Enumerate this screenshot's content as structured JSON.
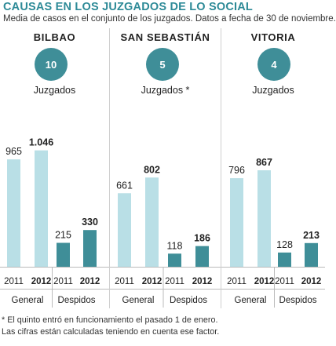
{
  "title": "CAUSAS EN LOS JUZGADOS DE LO SOCIAL",
  "subtitle": "Media de casos en el conjunto de los juzgados. Datos a fecha de 30 de noviembre.",
  "footnote": {
    "line1": "* El quinto entró en funcionamiento el pasado 1 de enero.",
    "line2": "Las cifras están calculadas teniendo en cuenta ese factor."
  },
  "colors": {
    "general_2011": "#b9dfe6",
    "general_2012": "#b9dfe6",
    "despidos_2011": "#3f8e98",
    "despidos_2012": "#3f8e98",
    "title": "#2d8a97",
    "badge": "#3f8e98"
  },
  "chart_data": [
    {
      "type": "bar",
      "panel": "BILBAO",
      "badge_value": "10",
      "badge_label": "Juzgados",
      "groups": [
        "General",
        "Despidos"
      ],
      "categories": [
        "2011",
        "2012",
        "2011",
        "2012"
      ],
      "value_labels": [
        "965",
        "1.046",
        "215",
        "330"
      ],
      "values": [
        965,
        1046,
        215,
        330
      ],
      "ylim": [
        0,
        1100
      ]
    },
    {
      "type": "bar",
      "panel": "SAN SEBASTIÁN",
      "badge_value": "5",
      "badge_label": "Juzgados *",
      "groups": [
        "General",
        "Despidos"
      ],
      "categories": [
        "2011",
        "2012",
        "2011",
        "2012"
      ],
      "value_labels": [
        "661",
        "802",
        "118",
        "186"
      ],
      "values": [
        661,
        802,
        118,
        186
      ],
      "ylim": [
        0,
        1100
      ]
    },
    {
      "type": "bar",
      "panel": "VITORIA",
      "badge_value": "4",
      "badge_label": "Juzgados",
      "groups": [
        "General",
        "Despidos"
      ],
      "categories": [
        "2011",
        "2012",
        "2011",
        "2012"
      ],
      "value_labels": [
        "796",
        "867",
        "128",
        "213"
      ],
      "values": [
        796,
        867,
        128,
        213
      ],
      "ylim": [
        0,
        1100
      ]
    }
  ]
}
